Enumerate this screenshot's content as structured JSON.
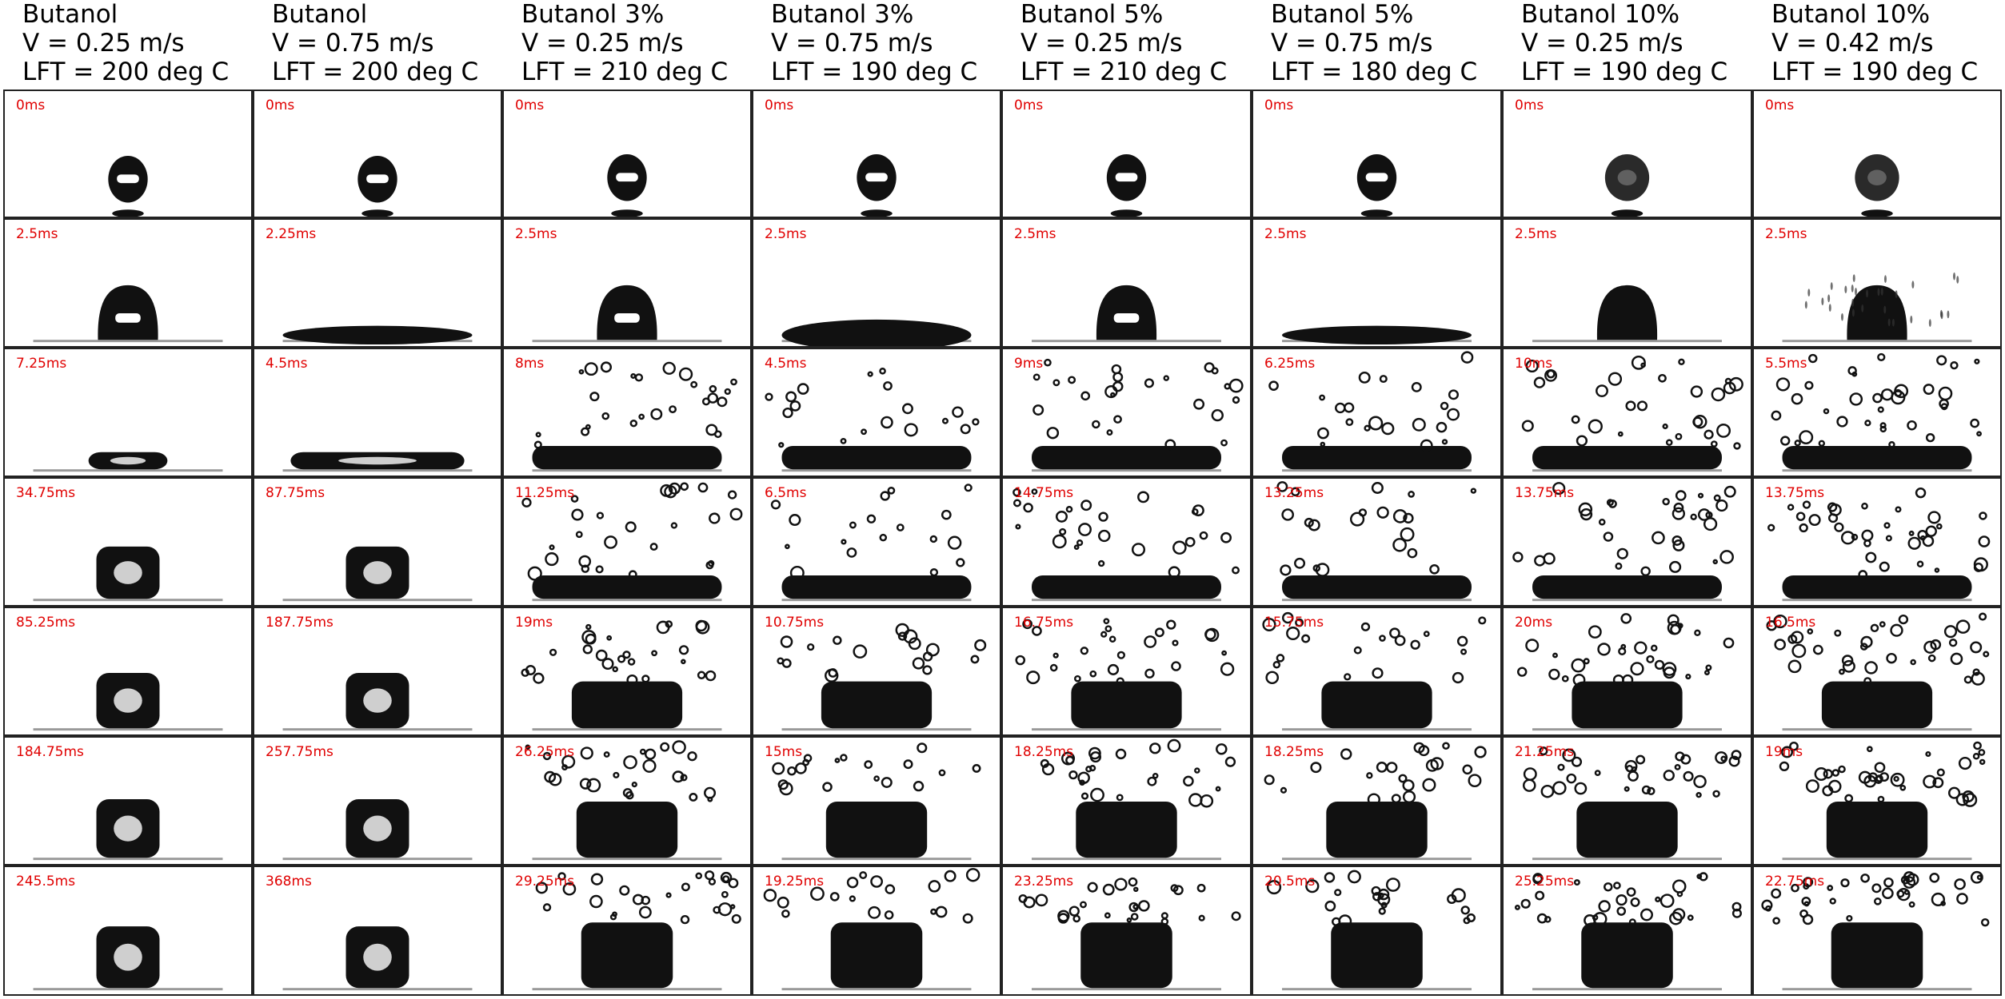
{
  "columns": [
    {
      "line1": "Butanol",
      "line2": "V = 0.25 m/s",
      "line3": "LFT = 200 deg C"
    },
    {
      "line1": "Butanol",
      "line2": "V = 0.75 m/s",
      "line3": "LFT = 200 deg C"
    },
    {
      "line1": "Butanol 3%",
      "line2": "V = 0.25 m/s",
      "line3": "LFT = 210 deg C"
    },
    {
      "line1": "Butanol 3%",
      "line2": "V = 0.75 m/s",
      "line3": "LFT = 190 deg C"
    },
    {
      "line1": "Butanol 5%",
      "line2": "V = 0.25 m/s",
      "line3": "LFT = 210 deg C"
    },
    {
      "line1": "Butanol 5%",
      "line2": "V = 0.75 m/s",
      "line3": "LFT = 180 deg C"
    },
    {
      "line1": "Butanol 10%",
      "line2": "V = 0.25 m/s",
      "line3": "LFT = 190 deg C"
    },
    {
      "line1": "Butanol 10%",
      "line2": "V = 0.42 m/s",
      "line3": "LFT = 190 deg C"
    }
  ],
  "time_labels": [
    [
      "0ms",
      "0ms",
      "0ms",
      "0ms",
      "0ms",
      "0ms",
      "0ms",
      "0ms"
    ],
    [
      "2.5ms",
      "2.25ms",
      "2.5ms",
      "2.5ms",
      "2.5ms",
      "2.5ms",
      "2.5ms",
      "2.5ms"
    ],
    [
      "7.25ms",
      "4.5ms",
      "8ms",
      "4.5ms",
      "9ms",
      "6.25ms",
      "10ms",
      "5.5ms"
    ],
    [
      "34.75ms",
      "87.75ms",
      "11.25ms",
      "6.5ms",
      "14.75ms",
      "13.25ms",
      "13.75ms",
      "13.75ms"
    ],
    [
      "85.25ms",
      "187.75ms",
      "19ms",
      "10.75ms",
      "16.75ms",
      "15.75ms",
      "20ms",
      "16.5ms"
    ],
    [
      "184.75ms",
      "257.75ms",
      "26.25ms",
      "15ms",
      "18.25ms",
      "18.25ms",
      "21.25ms",
      "19ms"
    ],
    [
      "245.5ms",
      "368ms",
      "29.25ms",
      "19.25ms",
      "23.25ms",
      "20.5ms",
      "25.25ms",
      "22.75ms"
    ]
  ],
  "colors": {
    "label": "#e00000",
    "droplet": "#111111",
    "border": "#222222"
  }
}
